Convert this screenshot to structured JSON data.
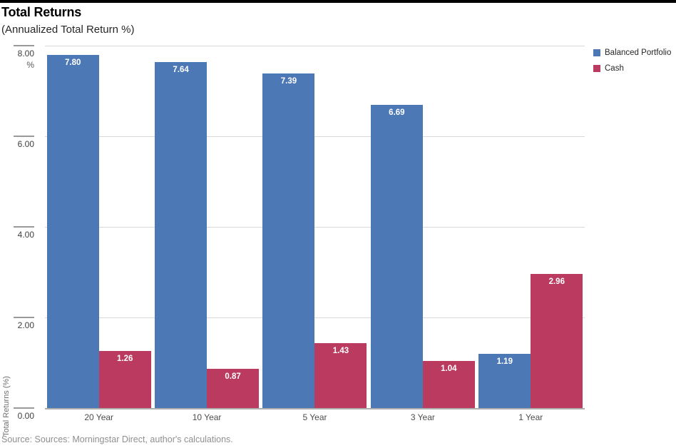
{
  "header": {
    "title": "Total Returns",
    "subtitle": "(Annualized Total Return %)"
  },
  "chart_data": {
    "type": "bar",
    "title": "Total Returns",
    "subtitle": "(Annualized Total Return %)",
    "categories": [
      "20 Year",
      "10 Year",
      "5 Year",
      "3 Year",
      "1 Year"
    ],
    "series": [
      {
        "name": "Balanced Portfolio",
        "color": "#4C78B6",
        "values": [
          7.8,
          7.64,
          7.39,
          6.69,
          1.19
        ]
      },
      {
        "name": "Cash",
        "color": "#BB3A60",
        "values": [
          1.26,
          0.87,
          1.43,
          1.04,
          2.96
        ]
      }
    ],
    "ylabel": "Total Returns (%)",
    "y_unit": "%",
    "ylim": [
      0,
      8
    ],
    "yticks": [
      0,
      2,
      4,
      6,
      8
    ],
    "ytick_decimals": 2,
    "grid": "horizontal",
    "legend_position": "top-right",
    "value_labels": true,
    "value_label_color": "#ffffff"
  },
  "footer": {
    "source": "Source: Sources: Morningstar Direct, author's calculations."
  }
}
